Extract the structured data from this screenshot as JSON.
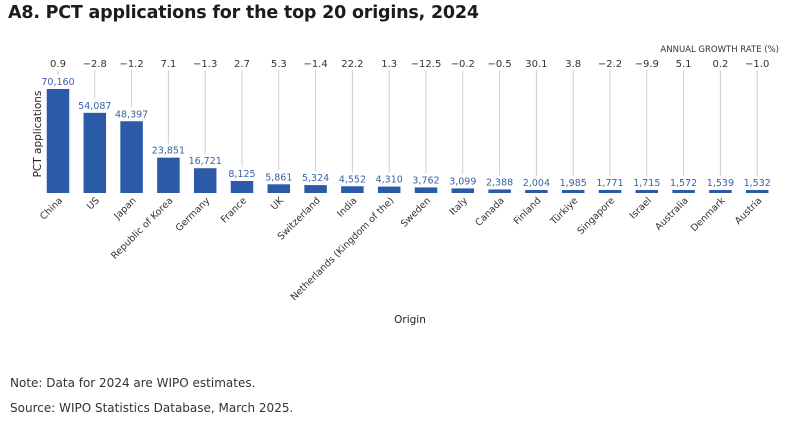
{
  "title": "A8. PCT applications for the top 20 origins, 2024",
  "note": "Note: Data for 2024 are WIPO estimates.",
  "source": "Source: WIPO Statistics Database, March 2025.",
  "colors": {
    "bar": "#2b5aa8",
    "value_label": "#3a62a8",
    "connector": "#d0d0d0"
  },
  "chart_data": {
    "type": "bar",
    "title": "A8. PCT applications for the top 20 origins, 2024",
    "xlabel": "Origin",
    "ylabel": "PCT applications",
    "ylim": [
      0,
      72000
    ],
    "grid": false,
    "categories": [
      "China",
      "US",
      "Japan",
      "Republic of Korea",
      "Germany",
      "France",
      "UK",
      "Switzerland",
      "India",
      "Netherlands (Kingdom of the)",
      "Sweden",
      "Italy",
      "Canada",
      "Finland",
      "Türkiye",
      "Singapore",
      "Israel",
      "Australia",
      "Denmark",
      "Austria"
    ],
    "values": [
      70160,
      54087,
      48397,
      23851,
      16721,
      8125,
      5861,
      5324,
      4552,
      4310,
      3762,
      3099,
      2388,
      2004,
      1985,
      1771,
      1715,
      1572,
      1539,
      1532
    ],
    "value_labels": [
      "70,160",
      "54,087",
      "48,397",
      "23,851",
      "16,721",
      "8,125",
      "5,861",
      "5,324",
      "4,552",
      "4,310",
      "3,762",
      "3,099",
      "2,388",
      "2,004",
      "1,985",
      "1,771",
      "1,715",
      "1,572",
      "1,539",
      "1,532"
    ],
    "growth_header": "ANNUAL GROWTH RATE (%)",
    "growth_rates": [
      0.9,
      -2.8,
      -1.2,
      7.1,
      -1.3,
      2.7,
      5.3,
      -1.4,
      22.2,
      1.3,
      -12.5,
      -0.2,
      -0.5,
      30.1,
      3.8,
      -2.2,
      -9.9,
      5.1,
      0.2,
      -1.0
    ],
    "growth_labels": [
      "0.9",
      "−2.8",
      "−1.2",
      "7.1",
      "−1.3",
      "2.7",
      "5.3",
      "−1.4",
      "22.2",
      "1.3",
      "−12.5",
      "−0.2",
      "−0.5",
      "30.1",
      "3.8",
      "−2.2",
      "−9.9",
      "5.1",
      "0.2",
      "−1.0"
    ]
  }
}
